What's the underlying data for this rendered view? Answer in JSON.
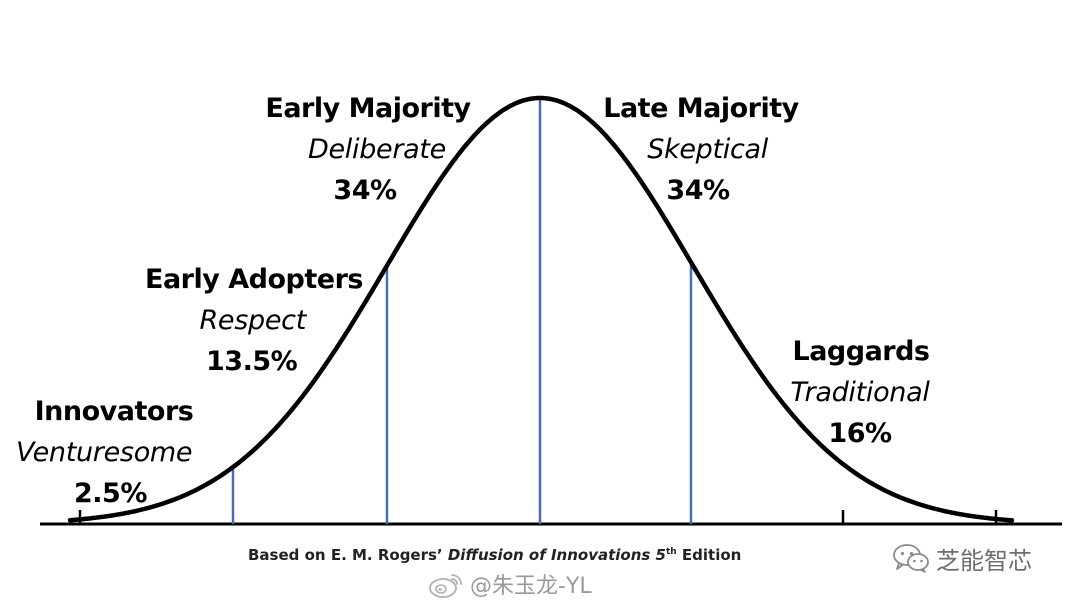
{
  "segments": [
    {
      "name": "Innovators",
      "trait": "Venturesome",
      "percent": "2.5%"
    },
    {
      "name": "Early Adopters",
      "trait": "Respect",
      "percent": "13.5%"
    },
    {
      "name": "Early Majority",
      "trait": "Deliberate",
      "percent": "34%"
    },
    {
      "name": "Late Majority",
      "trait": "Skeptical",
      "percent": "34%"
    },
    {
      "name": "Laggards",
      "trait": "Traditional",
      "percent": "16%"
    }
  ],
  "caption": {
    "prefix": "Based on E. M. Rogers’ ",
    "title": "Diffusion of Innovations 5",
    "superscript": "th",
    "suffix": " Edition"
  },
  "watermarks": {
    "wechat": "芝能智芯",
    "weibo": "@朱玉龙-YL"
  },
  "colors": {
    "curve": "#000000",
    "divider": "#4a6bb5",
    "axis": "#000000",
    "watermark": "#8a8a8a"
  }
}
